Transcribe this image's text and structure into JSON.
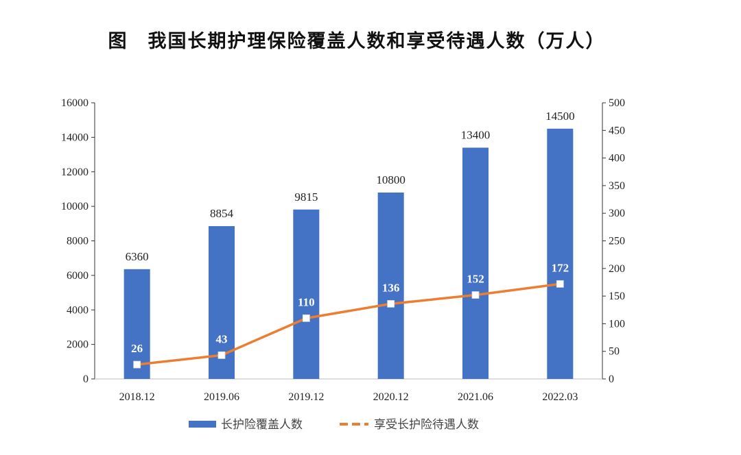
{
  "title": "图　我国长期护理保险覆盖人数和享受待遇人数（万人）",
  "chart_data": {
    "type": "bar",
    "title": "图　我国长期护理保险覆盖人数和享受待遇人数（万人）",
    "categories": [
      "2018.12",
      "2019.06",
      "2019.12",
      "2020.12",
      "2021.06",
      "2022.03"
    ],
    "series": [
      {
        "name": "长护险覆盖人数",
        "type": "bar",
        "axis": "left",
        "color": "#4472C4",
        "values": [
          6360,
          8854,
          9815,
          10800,
          13400,
          14500
        ]
      },
      {
        "name": "享受长护险待遇人数",
        "type": "line",
        "axis": "right",
        "color": "#ED7D31",
        "marker": "white-square",
        "values": [
          26,
          43,
          110,
          136,
          152,
          172
        ]
      }
    ],
    "y_left": {
      "ylim": [
        0,
        16000
      ],
      "ticks": [
        "0",
        "2000",
        "4000",
        "6000",
        "8000",
        "10000",
        "12000",
        "14000",
        "16000"
      ]
    },
    "y_right": {
      "ylim": [
        0,
        500
      ],
      "ticks": [
        "0",
        "50",
        "100",
        "150",
        "200",
        "250",
        "300",
        "350",
        "400",
        "450",
        "500"
      ]
    },
    "xlabel": "",
    "ylabel": "",
    "grid": false,
    "legend": "bottom"
  }
}
